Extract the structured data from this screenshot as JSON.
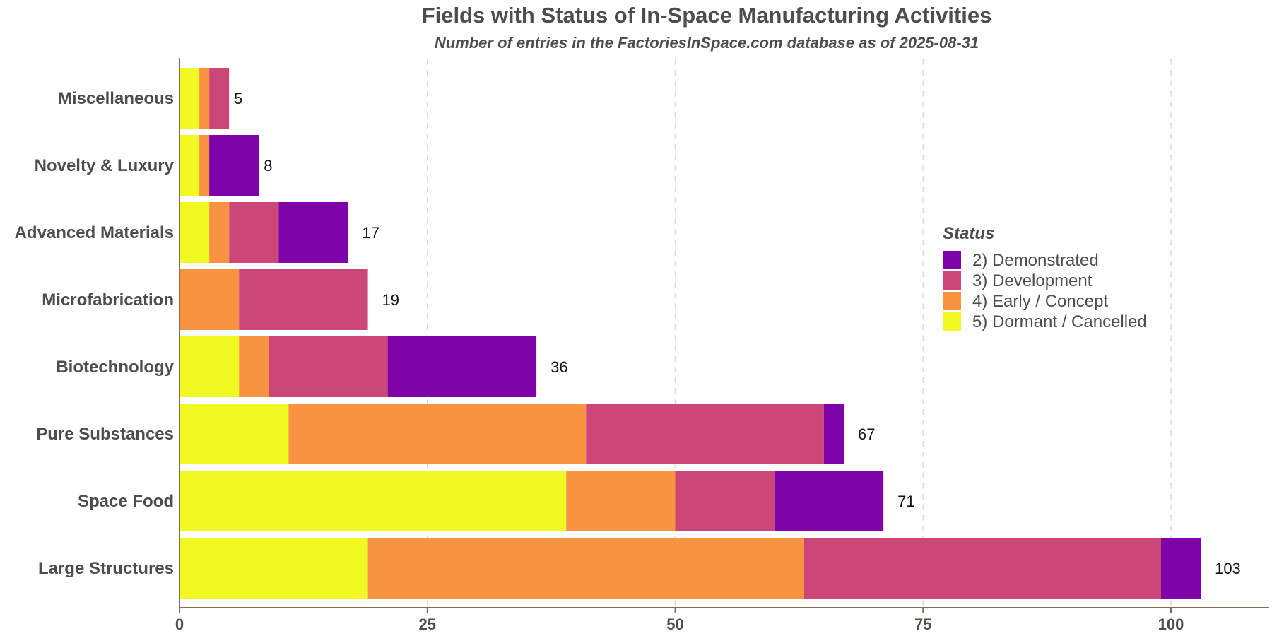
{
  "chart_data": {
    "type": "bar",
    "orientation": "horizontal",
    "stacked": true,
    "title": "Fields with Status of In-Space Manufacturing Activities",
    "subtitle": "Number of entries in the FactoriesInSpace.com database as of 2025-08-31",
    "xlabel": "",
    "ylabel": "",
    "xlim": [
      0,
      110
    ],
    "xticks": [
      0,
      25,
      50,
      75,
      100
    ],
    "grid": "vertical dashed",
    "categories": [
      "Miscellaneous",
      "Novelty & Luxury",
      "Advanced Materials",
      "Microfabrication",
      "Biotechnology",
      "Pure Substances",
      "Space Food",
      "Large Structures"
    ],
    "series": [
      {
        "name": "5)  Dormant / Cancelled",
        "color": "#f0f921",
        "values": [
          2,
          2,
          3,
          0,
          6,
          11,
          39,
          19
        ]
      },
      {
        "name": "4)  Early / Concept",
        "color": "#f89441",
        "values": [
          1,
          1,
          2,
          6,
          3,
          30,
          11,
          44
        ]
      },
      {
        "name": "3)  Development",
        "color": "#cc4778",
        "values": [
          2,
          0,
          5,
          13,
          12,
          24,
          10,
          36
        ]
      },
      {
        "name": "2)  Demonstrated",
        "color": "#7e03a8",
        "values": [
          0,
          5,
          7,
          0,
          15,
          2,
          11,
          4
        ]
      }
    ],
    "totals": [
      5,
      8,
      17,
      19,
      36,
      67,
      71,
      103
    ],
    "legend": {
      "title": "Status",
      "placement": "right",
      "entries": [
        {
          "label": "2)  Demonstrated",
          "color": "#7e03a8"
        },
        {
          "label": "3)  Development",
          "color": "#cc4778"
        },
        {
          "label": "4)  Early / Concept",
          "color": "#f89441"
        },
        {
          "label": "5)  Dormant / Cancelled",
          "color": "#f0f921"
        }
      ]
    }
  }
}
